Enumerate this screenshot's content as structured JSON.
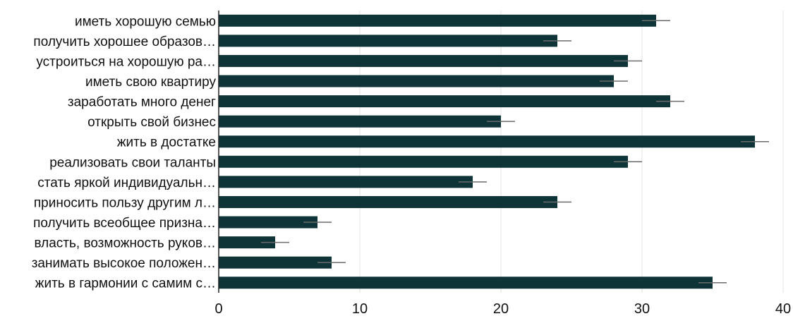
{
  "chart_data": {
    "type": "bar",
    "orientation": "horizontal",
    "categories": [
      "иметь хорошую семью",
      "получить хорошее образов…",
      "устроиться на хорошую ра…",
      "иметь свою квартиру",
      "заработать много денег",
      "открыть свой бизнес",
      "жить в достатке",
      "реализовать свои таланты",
      "стать яркой индивидуальн…",
      "приносить пользу другим л…",
      "получить всеобщее призна…",
      "власть, возможность руков…",
      "занимать высокое положен…",
      "жить в гармонии с самим с…"
    ],
    "values": [
      31,
      24,
      29,
      28,
      32,
      20,
      38,
      29,
      18,
      24,
      7,
      4,
      8,
      35
    ],
    "error_bars": [
      1,
      1,
      1,
      1,
      1,
      1,
      1,
      1,
      1,
      1,
      1,
      1,
      1,
      1
    ],
    "xlim": [
      0,
      40
    ],
    "xticks": [
      "0",
      "10",
      "20",
      "30",
      "40"
    ],
    "xlabel": "",
    "ylabel": "",
    "title": "",
    "grid": "vertical",
    "legend": "none",
    "colors": {
      "bar": "#0f3438",
      "error": "#6b6b6b",
      "grid": "#e3e3e3",
      "axis": "#222222",
      "text": "#111111"
    }
  }
}
